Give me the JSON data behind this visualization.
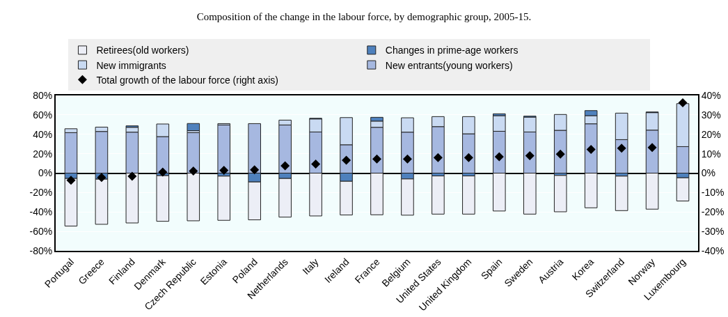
{
  "chart_data": {
    "type": "bar",
    "title": "Composition of the change in the labour force, by demographic group, 2005-15.",
    "stacked": true,
    "categories": [
      "Portugal",
      "Greece",
      "Finland",
      "Denmark",
      "Czech Republic",
      "Estonia",
      "Poland",
      "Netherlands",
      "Italy",
      "Ireland",
      "France",
      "Belgium",
      "United States",
      "United Kingdom",
      "Spain",
      "Sweden",
      "Austria",
      "Korea",
      "Switzerland",
      "Norway",
      "Luxembourg"
    ],
    "series": [
      {
        "name": "New entrants(young workers)",
        "color": "#a6b8e0",
        "values": [
          41.7,
          42.9,
          42.2,
          37.6,
          41.7,
          49.6,
          51,
          49.6,
          42.4,
          29.2,
          47.2,
          42.2,
          47.9,
          40.5,
          43.1,
          42.4,
          44.1,
          50.8,
          34.5,
          44.3,
          27.3
        ]
      },
      {
        "name": "New immigrants",
        "color": "#c9daf2",
        "values": [
          4,
          4.5,
          5,
          13,
          2,
          1.4,
          null,
          5,
          13.4,
          28,
          6.4,
          14.8,
          10.3,
          17.7,
          16.1,
          15.3,
          16.3,
          8.4,
          27.3,
          18,
          44.3
        ]
      },
      {
        "name": "Changes in prime-age workers",
        "color": "#4f81bd",
        "values": [
          -5.5,
          -6.2,
          1.5,
          -2.6,
          7.4,
          -3.1,
          -9.1,
          -5.5,
          0.7,
          -8.4,
          3.9,
          -6,
          -2.9,
          -2.9,
          1.9,
          1,
          -2.4,
          5.2,
          -3.1,
          0.7,
          -4.8
        ]
      },
      {
        "name": "Retirees(old workers)",
        "color": "#eceef6",
        "values": [
          -49,
          -46.5,
          -51.3,
          -47,
          -49.1,
          -45.5,
          -39,
          -39.8,
          -44.1,
          -34.7,
          -42.9,
          -37.3,
          -39.3,
          -39.3,
          -39,
          -42.2,
          -37.4,
          -35.7,
          -35.5,
          -37.1,
          -23.9
        ]
      },
      {
        "name": "Total growth of the labour force (right axis)",
        "type": "scatter",
        "axis": "y2",
        "marker": "diamond",
        "color": "#000000",
        "values": [
          -3.7,
          -2.2,
          -1.6,
          0.5,
          1.1,
          1.4,
          1.7,
          3.8,
          4.7,
          6.6,
          7.3,
          7.3,
          8,
          8,
          8.4,
          9,
          9.8,
          12.2,
          12.8,
          13.2,
          36.2
        ]
      }
    ],
    "ylim": [
      -80,
      80
    ],
    "yticks": [
      {
        "value": -80,
        "label": "-80%"
      },
      {
        "value": -60,
        "label": "-60%"
      },
      {
        "value": -40,
        "label": "-40%"
      },
      {
        "value": -20,
        "label": "-20%"
      },
      {
        "value": 0,
        "label": "0%"
      },
      {
        "value": 20,
        "label": "20%"
      },
      {
        "value": 40,
        "label": "40%"
      },
      {
        "value": 60,
        "label": "60%"
      },
      {
        "value": 80,
        "label": "80%"
      }
    ],
    "y2lim": [
      -40,
      40
    ],
    "y2ticks": [
      {
        "value": -40,
        "label": "-40%"
      },
      {
        "value": -30,
        "label": "-30%"
      },
      {
        "value": -20,
        "label": "-20%"
      },
      {
        "value": -10,
        "label": "-10%"
      },
      {
        "value": 0,
        "label": "0%"
      },
      {
        "value": 10,
        "label": "10%"
      },
      {
        "value": 20,
        "label": "20%"
      },
      {
        "value": 30,
        "label": "30%"
      },
      {
        "value": 40,
        "label": "40%"
      }
    ],
    "grid": true,
    "legend": "top"
  }
}
